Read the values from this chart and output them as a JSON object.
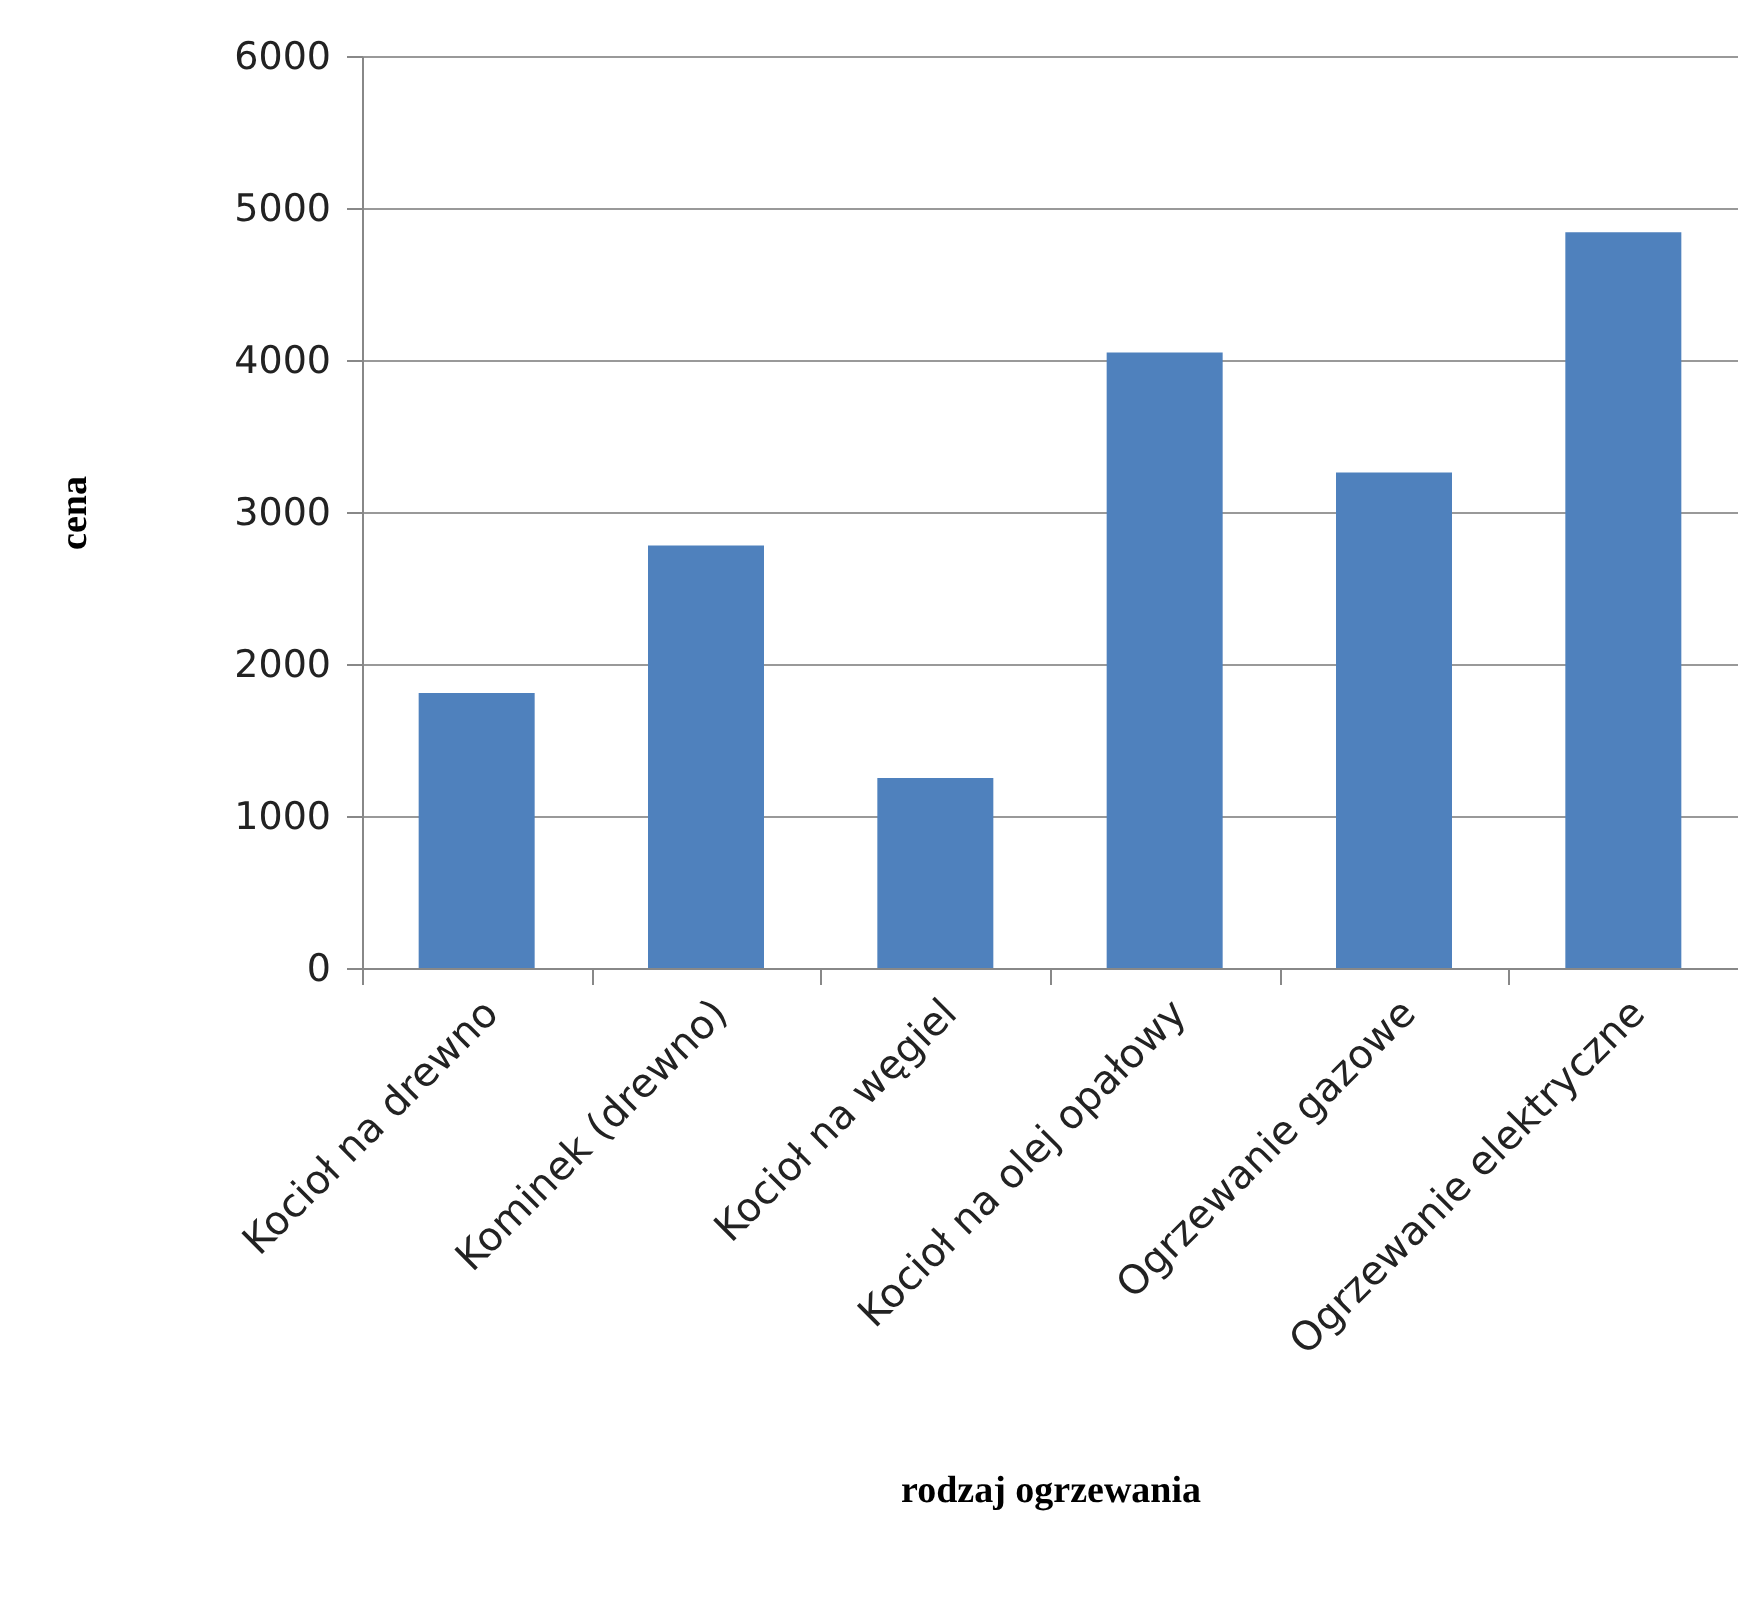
{
  "chart_data": {
    "type": "bar",
    "xlabel": "rodzaj ogrzewania",
    "ylabel": "cena",
    "categories": [
      "Kocioł na drewno",
      "Kominek (drewno)",
      "Kocioł na węgiel",
      "Kocioł na olej opałowy",
      "Ogrzewanie gazowe",
      "Ogrzewanie elektryczne"
    ],
    "values": [
      1810,
      2780,
      1250,
      4050,
      3260,
      4840
    ],
    "color": "#4f81bd",
    "ylim": [
      0,
      6000
    ],
    "yticks": [
      0,
      1000,
      2000,
      3000,
      4000,
      5000,
      6000
    ],
    "grid": "y"
  }
}
